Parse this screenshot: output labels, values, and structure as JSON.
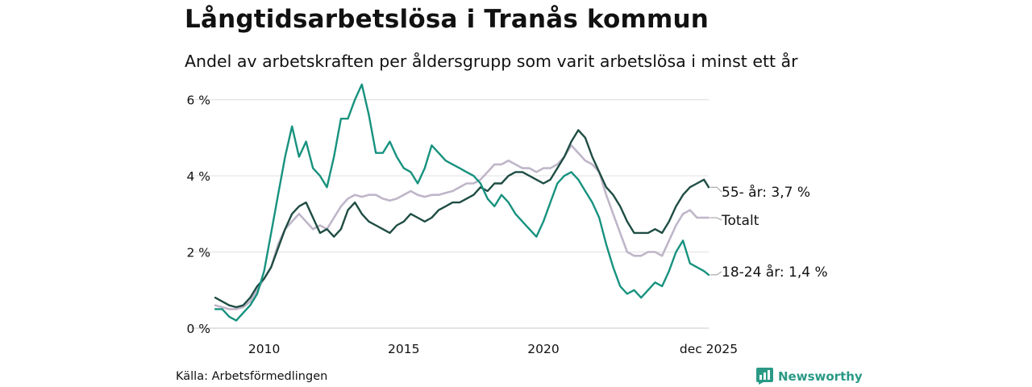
{
  "title": "Långtidsarbetslösa i Tranås kommun",
  "subtitle": "Andel av arbetskraften per åldersgrupp som varit arbetslösa i minst ett år",
  "source": "Källa: Arbetsförmedlingen",
  "brand": "Newsworthy",
  "colors": {
    "youth": "#17927f",
    "senior": "#1f4d44",
    "total": "#bfb6c9",
    "grid": "#e3e3e3",
    "brand": "#2a9a86"
  },
  "chart_data": {
    "type": "line",
    "title": "Långtidsarbetslösa i Tranås kommun",
    "xlabel": "",
    "ylabel": "",
    "ylim": [
      0,
      6.5
    ],
    "xlim": [
      2008.25,
      2025.92
    ],
    "yticks": [
      0,
      2,
      4,
      6
    ],
    "ytick_labels": [
      "0 %",
      "2 %",
      "4 %",
      "6 %"
    ],
    "xticks": [
      2010,
      2015,
      2020,
      2025.92
    ],
    "xtick_labels": [
      "2010",
      "2015",
      "2020",
      "dec 2025"
    ],
    "series": [
      {
        "name": "Totalt",
        "label": "Totalt",
        "key": "total",
        "x": [
          2008.25,
          2008.5,
          2008.75,
          2009,
          2009.25,
          2009.5,
          2009.75,
          2010,
          2010.25,
          2010.5,
          2010.75,
          2011,
          2011.25,
          2011.5,
          2011.75,
          2012,
          2012.25,
          2012.5,
          2012.75,
          2013,
          2013.25,
          2013.5,
          2013.75,
          2014,
          2014.25,
          2014.5,
          2014.75,
          2015,
          2015.25,
          2015.5,
          2015.75,
          2016,
          2016.25,
          2016.5,
          2016.75,
          2017,
          2017.25,
          2017.5,
          2017.75,
          2018,
          2018.25,
          2018.5,
          2018.75,
          2019,
          2019.25,
          2019.5,
          2019.75,
          2020,
          2020.25,
          2020.5,
          2020.75,
          2021,
          2021.25,
          2021.5,
          2021.75,
          2022,
          2022.25,
          2022.5,
          2022.75,
          2023,
          2023.25,
          2023.5,
          2023.75,
          2024,
          2024.25,
          2024.5,
          2024.75,
          2025,
          2025.25,
          2025.5,
          2025.75,
          2025.92
        ],
        "values": [
          0.6,
          0.55,
          0.5,
          0.5,
          0.55,
          0.7,
          1.0,
          1.3,
          1.6,
          2.2,
          2.6,
          2.8,
          3.0,
          2.8,
          2.6,
          2.7,
          2.6,
          2.9,
          3.2,
          3.4,
          3.5,
          3.45,
          3.5,
          3.5,
          3.4,
          3.35,
          3.4,
          3.5,
          3.6,
          3.5,
          3.45,
          3.5,
          3.5,
          3.55,
          3.6,
          3.7,
          3.8,
          3.8,
          3.9,
          4.1,
          4.3,
          4.3,
          4.4,
          4.3,
          4.2,
          4.2,
          4.1,
          4.2,
          4.2,
          4.3,
          4.5,
          4.8,
          4.6,
          4.4,
          4.3,
          4.1,
          3.5,
          3.0,
          2.5,
          2.0,
          1.9,
          1.9,
          2.0,
          2.0,
          1.9,
          2.3,
          2.7,
          3.0,
          3.1,
          2.9,
          2.9,
          2.9
        ]
      },
      {
        "name": "55- år",
        "label": "55- år: 3,7 %",
        "key": "senior",
        "x": [
          2008.25,
          2008.5,
          2008.75,
          2009,
          2009.25,
          2009.5,
          2009.75,
          2010,
          2010.25,
          2010.5,
          2010.75,
          2011,
          2011.25,
          2011.5,
          2011.75,
          2012,
          2012.25,
          2012.5,
          2012.75,
          2013,
          2013.25,
          2013.5,
          2013.75,
          2014,
          2014.25,
          2014.5,
          2014.75,
          2015,
          2015.25,
          2015.5,
          2015.75,
          2016,
          2016.25,
          2016.5,
          2016.75,
          2017,
          2017.25,
          2017.5,
          2017.75,
          2018,
          2018.25,
          2018.5,
          2018.75,
          2019,
          2019.25,
          2019.5,
          2019.75,
          2020,
          2020.25,
          2020.5,
          2020.75,
          2021,
          2021.25,
          2021.5,
          2021.75,
          2022,
          2022.25,
          2022.5,
          2022.75,
          2023,
          2023.25,
          2023.5,
          2023.75,
          2024,
          2024.25,
          2024.5,
          2024.75,
          2025,
          2025.25,
          2025.5,
          2025.75,
          2025.92
        ],
        "values": [
          0.8,
          0.7,
          0.6,
          0.55,
          0.6,
          0.8,
          1.1,
          1.3,
          1.6,
          2.1,
          2.6,
          3.0,
          3.2,
          3.3,
          2.9,
          2.5,
          2.6,
          2.4,
          2.6,
          3.1,
          3.3,
          3.0,
          2.8,
          2.7,
          2.6,
          2.5,
          2.7,
          2.8,
          3.0,
          2.9,
          2.8,
          2.9,
          3.1,
          3.2,
          3.3,
          3.3,
          3.4,
          3.5,
          3.7,
          3.6,
          3.8,
          3.8,
          4.0,
          4.1,
          4.1,
          4.0,
          3.9,
          3.8,
          3.9,
          4.2,
          4.5,
          4.9,
          5.2,
          5.0,
          4.5,
          4.1,
          3.7,
          3.5,
          3.2,
          2.8,
          2.5,
          2.5,
          2.5,
          2.6,
          2.5,
          2.8,
          3.2,
          3.5,
          3.7,
          3.8,
          3.9,
          3.7
        ]
      },
      {
        "name": "18-24 år",
        "label": "18-24 år: 1,4 %",
        "key": "youth",
        "x": [
          2008.25,
          2008.5,
          2008.75,
          2009,
          2009.25,
          2009.5,
          2009.75,
          2010,
          2010.25,
          2010.5,
          2010.75,
          2011,
          2011.25,
          2011.5,
          2011.75,
          2012,
          2012.25,
          2012.5,
          2012.75,
          2013,
          2013.25,
          2013.5,
          2013.75,
          2014,
          2014.25,
          2014.5,
          2014.75,
          2015,
          2015.25,
          2015.5,
          2015.75,
          2016,
          2016.25,
          2016.5,
          2016.75,
          2017,
          2017.25,
          2017.5,
          2017.75,
          2018,
          2018.25,
          2018.5,
          2018.75,
          2019,
          2019.25,
          2019.5,
          2019.75,
          2020,
          2020.25,
          2020.5,
          2020.75,
          2021,
          2021.25,
          2021.5,
          2021.75,
          2022,
          2022.25,
          2022.5,
          2022.75,
          2023,
          2023.25,
          2023.5,
          2023.75,
          2024,
          2024.25,
          2024.5,
          2024.75,
          2025,
          2025.25,
          2025.5,
          2025.75,
          2025.92
        ],
        "values": [
          0.5,
          0.5,
          0.3,
          0.2,
          0.4,
          0.6,
          0.9,
          1.5,
          2.5,
          3.5,
          4.5,
          5.3,
          4.5,
          4.9,
          4.2,
          4.0,
          3.7,
          4.5,
          5.5,
          5.5,
          6.0,
          6.4,
          5.6,
          4.6,
          4.6,
          4.9,
          4.5,
          4.2,
          4.1,
          3.8,
          4.2,
          4.8,
          4.6,
          4.4,
          4.3,
          4.2,
          4.1,
          4.0,
          3.8,
          3.4,
          3.2,
          3.5,
          3.3,
          3.0,
          2.8,
          2.6,
          2.4,
          2.8,
          3.3,
          3.8,
          4.0,
          4.1,
          3.9,
          3.6,
          3.3,
          2.9,
          2.2,
          1.6,
          1.1,
          0.9,
          1.0,
          0.8,
          1.0,
          1.2,
          1.1,
          1.5,
          2.0,
          2.3,
          1.7,
          1.6,
          1.5,
          1.4
        ]
      }
    ]
  }
}
